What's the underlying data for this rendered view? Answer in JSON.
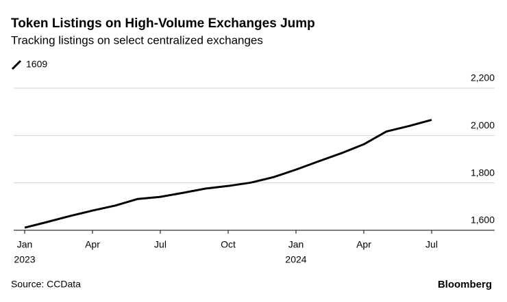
{
  "chart_data": {
    "type": "line",
    "title": "Token Listings on High-Volume Exchanges Jump",
    "subtitle": "Tracking listings on select centralized exchanges",
    "source": "Source: CCData",
    "brand": "Bloomberg",
    "x": [
      "2023-01",
      "2023-02",
      "2023-03",
      "2023-04",
      "2023-05",
      "2023-06",
      "2023-07",
      "2023-08",
      "2023-09",
      "2023-10",
      "2023-11",
      "2023-12",
      "2024-01",
      "2024-02",
      "2024-03",
      "2024-04",
      "2024-05",
      "2024-06",
      "2024-07"
    ],
    "series": [
      {
        "name": "1609",
        "color": "#000000",
        "values": [
          1611,
          1635,
          1660,
          1683,
          1704,
          1732,
          1741,
          1758,
          1776,
          1787,
          1801,
          1824,
          1856,
          1891,
          1925,
          1963,
          2017,
          2040,
          2066
        ]
      }
    ],
    "xticks": [
      {
        "value": "2023-01",
        "label": "Jan"
      },
      {
        "value": "2023-04",
        "label": "Apr"
      },
      {
        "value": "2023-07",
        "label": "Jul"
      },
      {
        "value": "2023-10",
        "label": "Oct"
      },
      {
        "value": "2024-01",
        "label": "Jan"
      },
      {
        "value": "2024-04",
        "label": "Apr"
      },
      {
        "value": "2024-07",
        "label": "Jul"
      }
    ],
    "xtick_years": [
      {
        "value": "2023-01",
        "label": "2023"
      },
      {
        "value": "2024-01",
        "label": "2024"
      }
    ],
    "ylim": [
      1600,
      2200
    ],
    "yticks": [
      {
        "value": 1600,
        "label": "1,600"
      },
      {
        "value": 1800,
        "label": "1,800"
      },
      {
        "value": 2000,
        "label": "2,000"
      },
      {
        "value": 2200,
        "label": "2,200"
      }
    ],
    "grid": true
  }
}
